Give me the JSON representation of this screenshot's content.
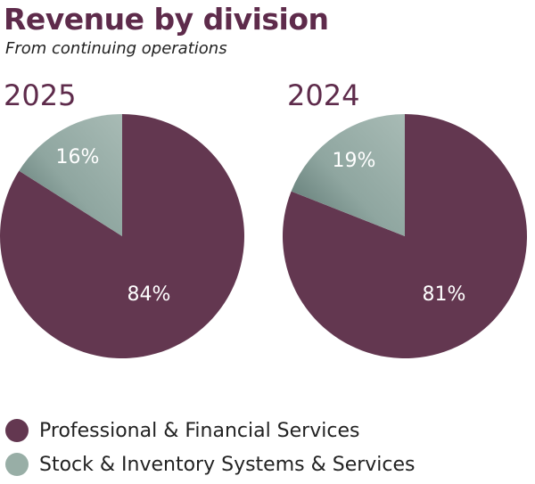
{
  "colors": {
    "professional": "#633750",
    "stock": "#98aea6",
    "heading": "#5e2b4b"
  },
  "chart_data": [
    {
      "type": "pie",
      "title": "2025",
      "slices": [
        {
          "name": "Professional & Financial Services",
          "value": 84,
          "label": "84%"
        },
        {
          "name": "Stock & Inventory Systems & Services",
          "value": 16,
          "label": "16%"
        }
      ]
    },
    {
      "type": "pie",
      "title": "2024",
      "slices": [
        {
          "name": "Professional & Financial Services",
          "value": 81,
          "label": "81%"
        },
        {
          "name": "Stock & Inventory Systems & Services",
          "value": 19,
          "label": "19%"
        }
      ]
    }
  ],
  "header": {
    "title": "Revenue by division",
    "subtitle": "From continuing operations"
  },
  "legend": [
    {
      "label": "Professional & Financial Services",
      "color_key": "professional"
    },
    {
      "label": "Stock & Inventory Systems & Services",
      "color_key": "stock"
    }
  ]
}
